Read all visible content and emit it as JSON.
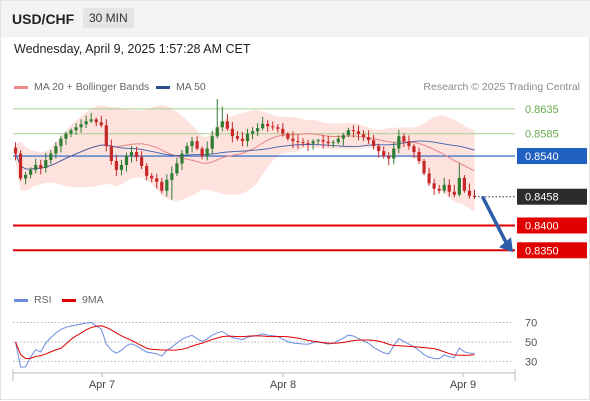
{
  "header": {
    "symbol": "USD/CHF",
    "timeframe": "30 MIN"
  },
  "timestamp": "Wednesday, April 9, 2025 1:57:28 AM CET",
  "legend": {
    "ma20": "MA 20 + Bollinger Bands",
    "ma50": "MA 50",
    "rsi": "RSI",
    "ma9": "9MA"
  },
  "credit": "Research © 2025 Trading Central",
  "colors": {
    "up": "#2e7d32",
    "down": "#c62828",
    "band": "#fde2de",
    "ma20": "#e88585",
    "ma50": "#3c5fa8",
    "resistance": "#a8d08d",
    "support": "#e00000",
    "pivot": "#1f5fbf",
    "rsi": "#6b8be0",
    "rsi_ma": "#e00000"
  },
  "chart_data": [
    {
      "type": "candlestick",
      "title": "USD/CHF",
      "x_labels": [
        "Apr 7",
        "Apr 8",
        "Apr 9"
      ],
      "ylim": [
        0.828,
        0.8655
      ],
      "current_price": 0.8458,
      "pivot": 0.854,
      "resistances": [
        0.8635,
        0.8585
      ],
      "supports": [
        0.84,
        0.835
      ],
      "forecast": {
        "from": 0.8458,
        "to": 0.835,
        "direction": "down"
      },
      "price_labels": [
        "0.8635",
        "0.8585",
        "0.8540",
        "0.8458",
        "0.8400",
        "0.8350"
      ],
      "series": [
        {
          "name": "MA 20 + Bollinger Bands"
        },
        {
          "name": "MA 50"
        }
      ],
      "closes": [
        0.8545,
        0.8495,
        0.8502,
        0.8512,
        0.8522,
        0.8516,
        0.8532,
        0.8545,
        0.856,
        0.8575,
        0.8585,
        0.8592,
        0.8598,
        0.8604,
        0.861,
        0.8614,
        0.8608,
        0.8602,
        0.856,
        0.853,
        0.8512,
        0.8522,
        0.854,
        0.8548,
        0.8538,
        0.852,
        0.85,
        0.8495,
        0.8488,
        0.847,
        0.8492,
        0.8505,
        0.8525,
        0.8545,
        0.856,
        0.857,
        0.8555,
        0.854,
        0.8555,
        0.858,
        0.8598,
        0.861,
        0.8595,
        0.858,
        0.8575,
        0.857,
        0.8585,
        0.859,
        0.8596,
        0.8605,
        0.86,
        0.8598,
        0.8595,
        0.8585,
        0.8575,
        0.857,
        0.8568,
        0.8566,
        0.8565,
        0.857,
        0.8572,
        0.8569,
        0.8566,
        0.8568,
        0.8575,
        0.8582,
        0.8592,
        0.859,
        0.8584,
        0.8578,
        0.8572,
        0.856,
        0.855,
        0.854,
        0.8535,
        0.8555,
        0.858,
        0.857,
        0.856,
        0.8548,
        0.853,
        0.8505,
        0.8485,
        0.8474,
        0.847,
        0.8482,
        0.8468,
        0.8462,
        0.8496,
        0.847,
        0.846,
        0.8458
      ]
    },
    {
      "type": "line",
      "title": "RSI",
      "ylim": [
        22,
        80
      ],
      "ticks": [
        70,
        50,
        30
      ],
      "series": [
        {
          "name": "RSI"
        },
        {
          "name": "9MA"
        }
      ]
    }
  ]
}
